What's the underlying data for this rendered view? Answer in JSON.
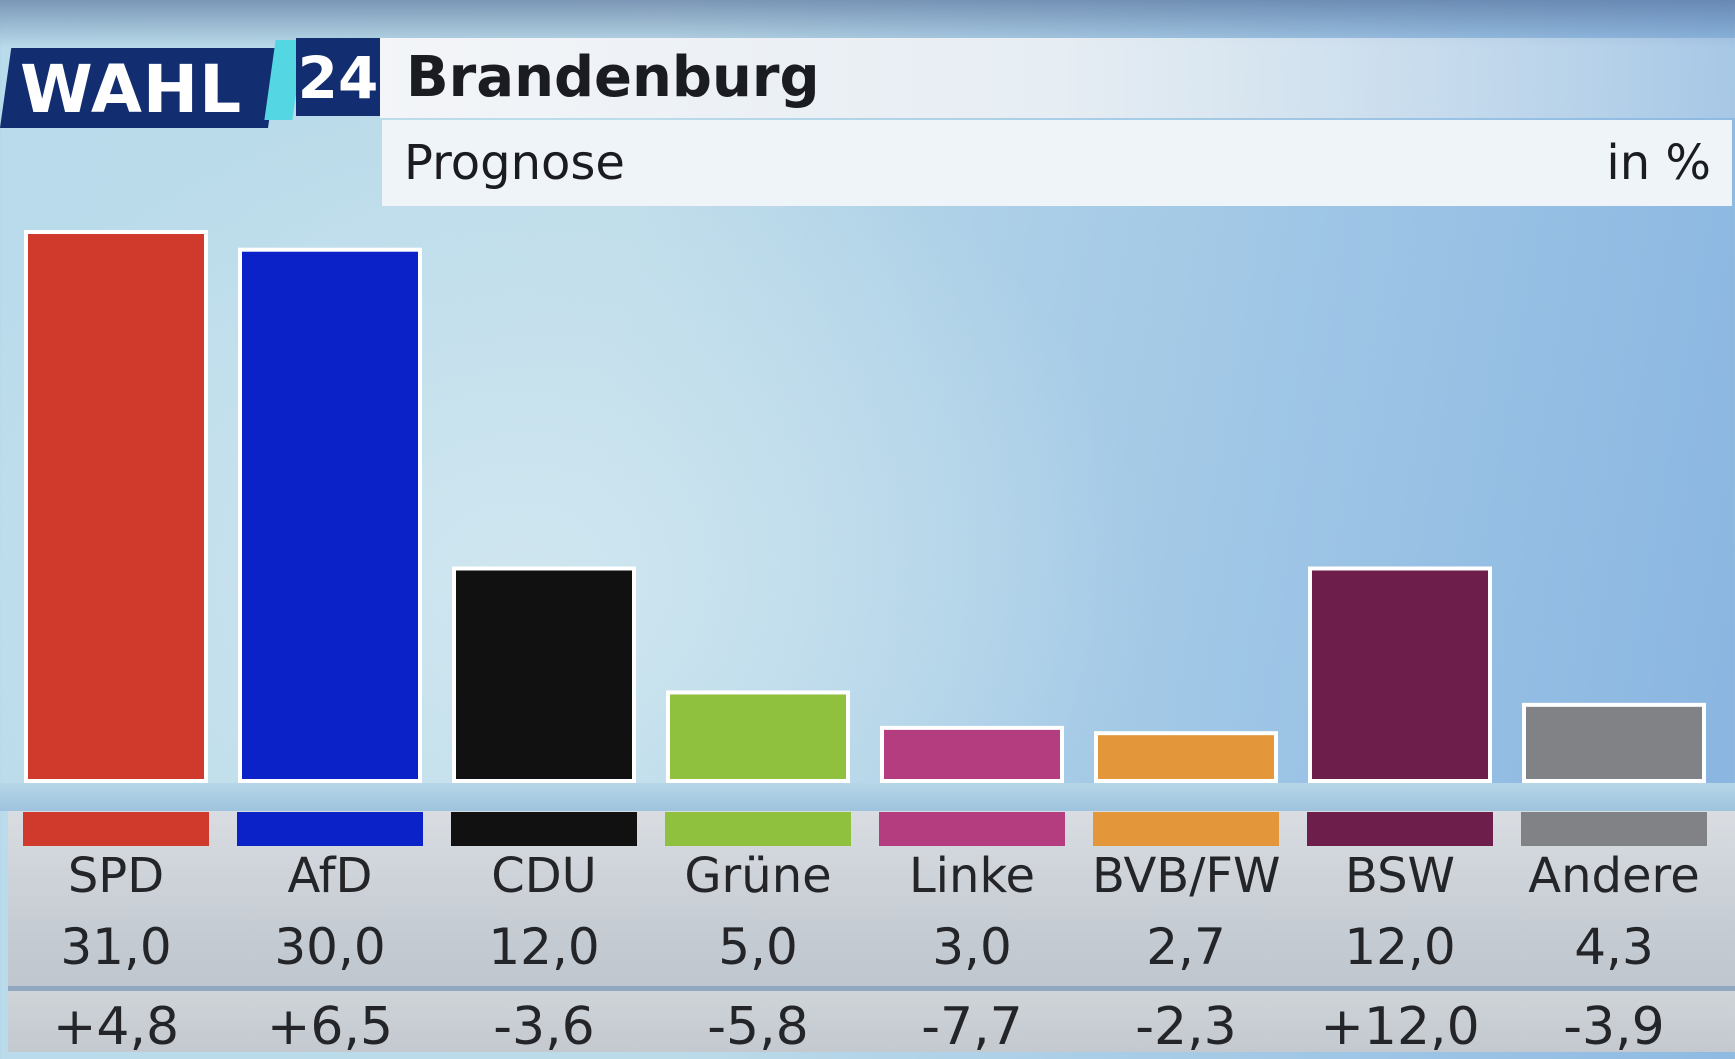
{
  "header": {
    "logo_word": "WAHL",
    "logo_number": "24",
    "title": "Brandenburg",
    "subtitle": "Prognose",
    "unit": "in %"
  },
  "colors": {
    "SPD": "#cf3a2d",
    "AfD": "#0b22c9",
    "CDU": "#111111",
    "Grüne": "#8fc13f",
    "Linke": "#b43d7f",
    "BVB/FW": "#e3963a",
    "BSW": "#6e1e4b",
    "Andere": "#808285",
    "logo_blue": "#132e70",
    "logo_accent": "#54d7e2"
  },
  "chart_data": {
    "type": "bar",
    "title": "Brandenburg",
    "subtitle": "Prognose",
    "unit": "in %",
    "categories": [
      "SPD",
      "AfD",
      "CDU",
      "Grüne",
      "Linke",
      "BVB/FW",
      "BSW",
      "Andere"
    ],
    "values": [
      31.0,
      30.0,
      12.0,
      5.0,
      3.0,
      2.7,
      12.0,
      4.3
    ],
    "value_labels": [
      "31,0",
      "30,0",
      "12,0",
      "5,0",
      "3,0",
      "2,7",
      "12,0",
      "4,3"
    ],
    "changes": [
      4.8,
      6.5,
      -3.6,
      -5.8,
      -7.7,
      -2.3,
      12.0,
      -3.9
    ],
    "change_labels": [
      "+4,8",
      "+6,5",
      "-3,6",
      "-5,8",
      "-7,7",
      "-2,3",
      "+12,0",
      "-3,9"
    ],
    "ylim": [
      0,
      31
    ],
    "grid": false,
    "legend": "none"
  }
}
